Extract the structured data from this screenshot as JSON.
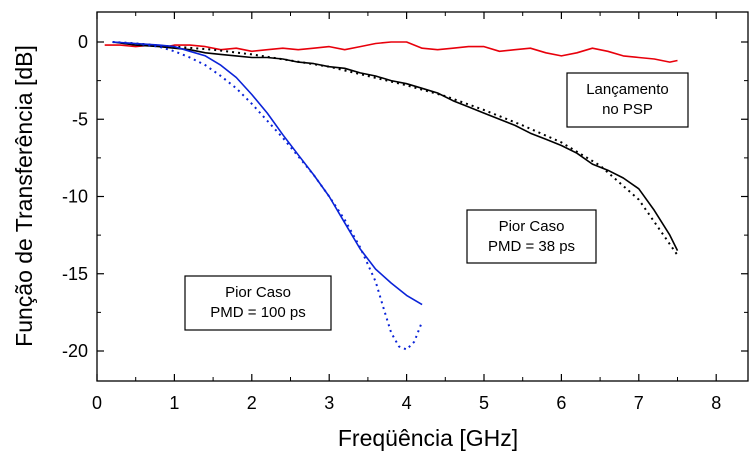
{
  "chart_data": {
    "type": "line",
    "xlabel": "Freqüência [GHz]",
    "ylabel": "Função de Transferência [dB]",
    "xlim": [
      0,
      8.5
    ],
    "ylim": [
      -22,
      2
    ],
    "xticks": [
      "0",
      "1",
      "2",
      "3",
      "4",
      "5",
      "6",
      "7",
      "8"
    ],
    "yticks": [
      "0",
      "-5",
      "-10",
      "-15",
      "-20"
    ],
    "grid": false,
    "colors": {
      "red": "#e8000b",
      "black": "#000000",
      "blue": "#0a23d8"
    },
    "series": [
      {
        "color": "red",
        "style": "solid",
        "x": [
          0.1,
          0.3,
          0.5,
          0.7,
          0.9,
          1.0,
          1.2,
          1.4,
          1.6,
          1.8,
          2.0,
          2.2,
          2.4,
          2.6,
          2.8,
          3.0,
          3.2,
          3.4,
          3.6,
          3.8,
          4.0,
          4.2,
          4.4,
          4.6,
          4.8,
          5.0,
          5.2,
          5.4,
          5.6,
          5.8,
          6.0,
          6.2,
          6.4,
          6.6,
          6.8,
          7.0,
          7.2,
          7.4,
          7.5
        ],
        "y": [
          -0.2,
          -0.2,
          -0.3,
          -0.2,
          -0.3,
          -0.2,
          -0.2,
          -0.3,
          -0.5,
          -0.4,
          -0.6,
          -0.5,
          -0.4,
          -0.5,
          -0.4,
          -0.3,
          -0.5,
          -0.3,
          -0.1,
          0.0,
          0.0,
          -0.4,
          -0.5,
          -0.4,
          -0.3,
          -0.3,
          -0.6,
          -0.5,
          -0.4,
          -0.7,
          -0.9,
          -0.7,
          -0.4,
          -0.6,
          -0.9,
          -1.0,
          -1.1,
          -1.3,
          -1.2
        ]
      },
      {
        "color": "black",
        "style": "solid",
        "x": [
          0.2,
          0.5,
          0.8,
          1.0,
          1.2,
          1.4,
          1.6,
          1.8,
          2.0,
          2.2,
          2.4,
          2.6,
          2.8,
          3.0,
          3.2,
          3.4,
          3.6,
          3.8,
          4.0,
          4.2,
          4.4,
          4.6,
          4.8,
          5.0,
          5.2,
          5.4,
          5.6,
          5.8,
          6.0,
          6.2,
          6.4,
          6.6,
          6.8,
          7.0,
          7.2,
          7.4,
          7.5
        ],
        "y": [
          0.0,
          -0.2,
          -0.3,
          -0.4,
          -0.5,
          -0.7,
          -0.8,
          -0.9,
          -1.0,
          -1.0,
          -1.1,
          -1.3,
          -1.4,
          -1.6,
          -1.7,
          -2.0,
          -2.2,
          -2.5,
          -2.7,
          -3.0,
          -3.3,
          -3.8,
          -4.2,
          -4.6,
          -5.0,
          -5.4,
          -5.9,
          -6.3,
          -6.7,
          -7.2,
          -7.9,
          -8.3,
          -8.8,
          -9.5,
          -10.9,
          -12.5,
          -13.5
        ]
      },
      {
        "color": "black",
        "style": "dotted",
        "x": [
          0.2,
          0.5,
          1.0,
          1.5,
          2.0,
          2.5,
          3.0,
          3.5,
          4.0,
          4.5,
          5.0,
          5.5,
          6.0,
          6.5,
          7.0,
          7.5
        ],
        "y": [
          0.0,
          -0.1,
          -0.3,
          -0.5,
          -0.8,
          -1.2,
          -1.6,
          -2.2,
          -2.8,
          -3.5,
          -4.4,
          -5.4,
          -6.5,
          -8.0,
          -10.2,
          -13.8
        ]
      },
      {
        "color": "blue",
        "style": "solid",
        "x": [
          0.2,
          0.5,
          0.8,
          1.0,
          1.2,
          1.4,
          1.6,
          1.8,
          2.0,
          2.2,
          2.4,
          2.6,
          2.8,
          3.0,
          3.2,
          3.4,
          3.6,
          3.8,
          4.0,
          4.2
        ],
        "y": [
          0.0,
          -0.1,
          -0.2,
          -0.3,
          -0.6,
          -0.9,
          -1.5,
          -2.3,
          -3.4,
          -4.6,
          -6.0,
          -7.3,
          -8.6,
          -10.0,
          -11.7,
          -13.4,
          -14.7,
          -15.6,
          -16.4,
          -17.0
        ]
      },
      {
        "color": "blue",
        "style": "dotted",
        "x": [
          0.2,
          0.5,
          0.8,
          1.0,
          1.2,
          1.4,
          1.6,
          1.8,
          2.0,
          2.2,
          2.4,
          2.6,
          2.8,
          3.0,
          3.2,
          3.4,
          3.6,
          3.7,
          3.8,
          3.9,
          4.0,
          4.1,
          4.2
        ],
        "y": [
          0.0,
          -0.1,
          -0.3,
          -0.6,
          -1.0,
          -1.5,
          -2.2,
          -3.0,
          -4.0,
          -5.1,
          -6.2,
          -7.4,
          -8.6,
          -10.0,
          -11.5,
          -13.3,
          -15.5,
          -17.2,
          -18.8,
          -19.7,
          -19.9,
          -19.4,
          -18.1
        ]
      }
    ],
    "annotations": [
      {
        "lines": [
          "Lançamento",
          "no PSP"
        ]
      },
      {
        "lines": [
          "Pior Caso",
          "PMD = 38 ps"
        ]
      },
      {
        "lines": [
          "Pior Caso",
          "PMD = 100 ps"
        ]
      }
    ]
  }
}
